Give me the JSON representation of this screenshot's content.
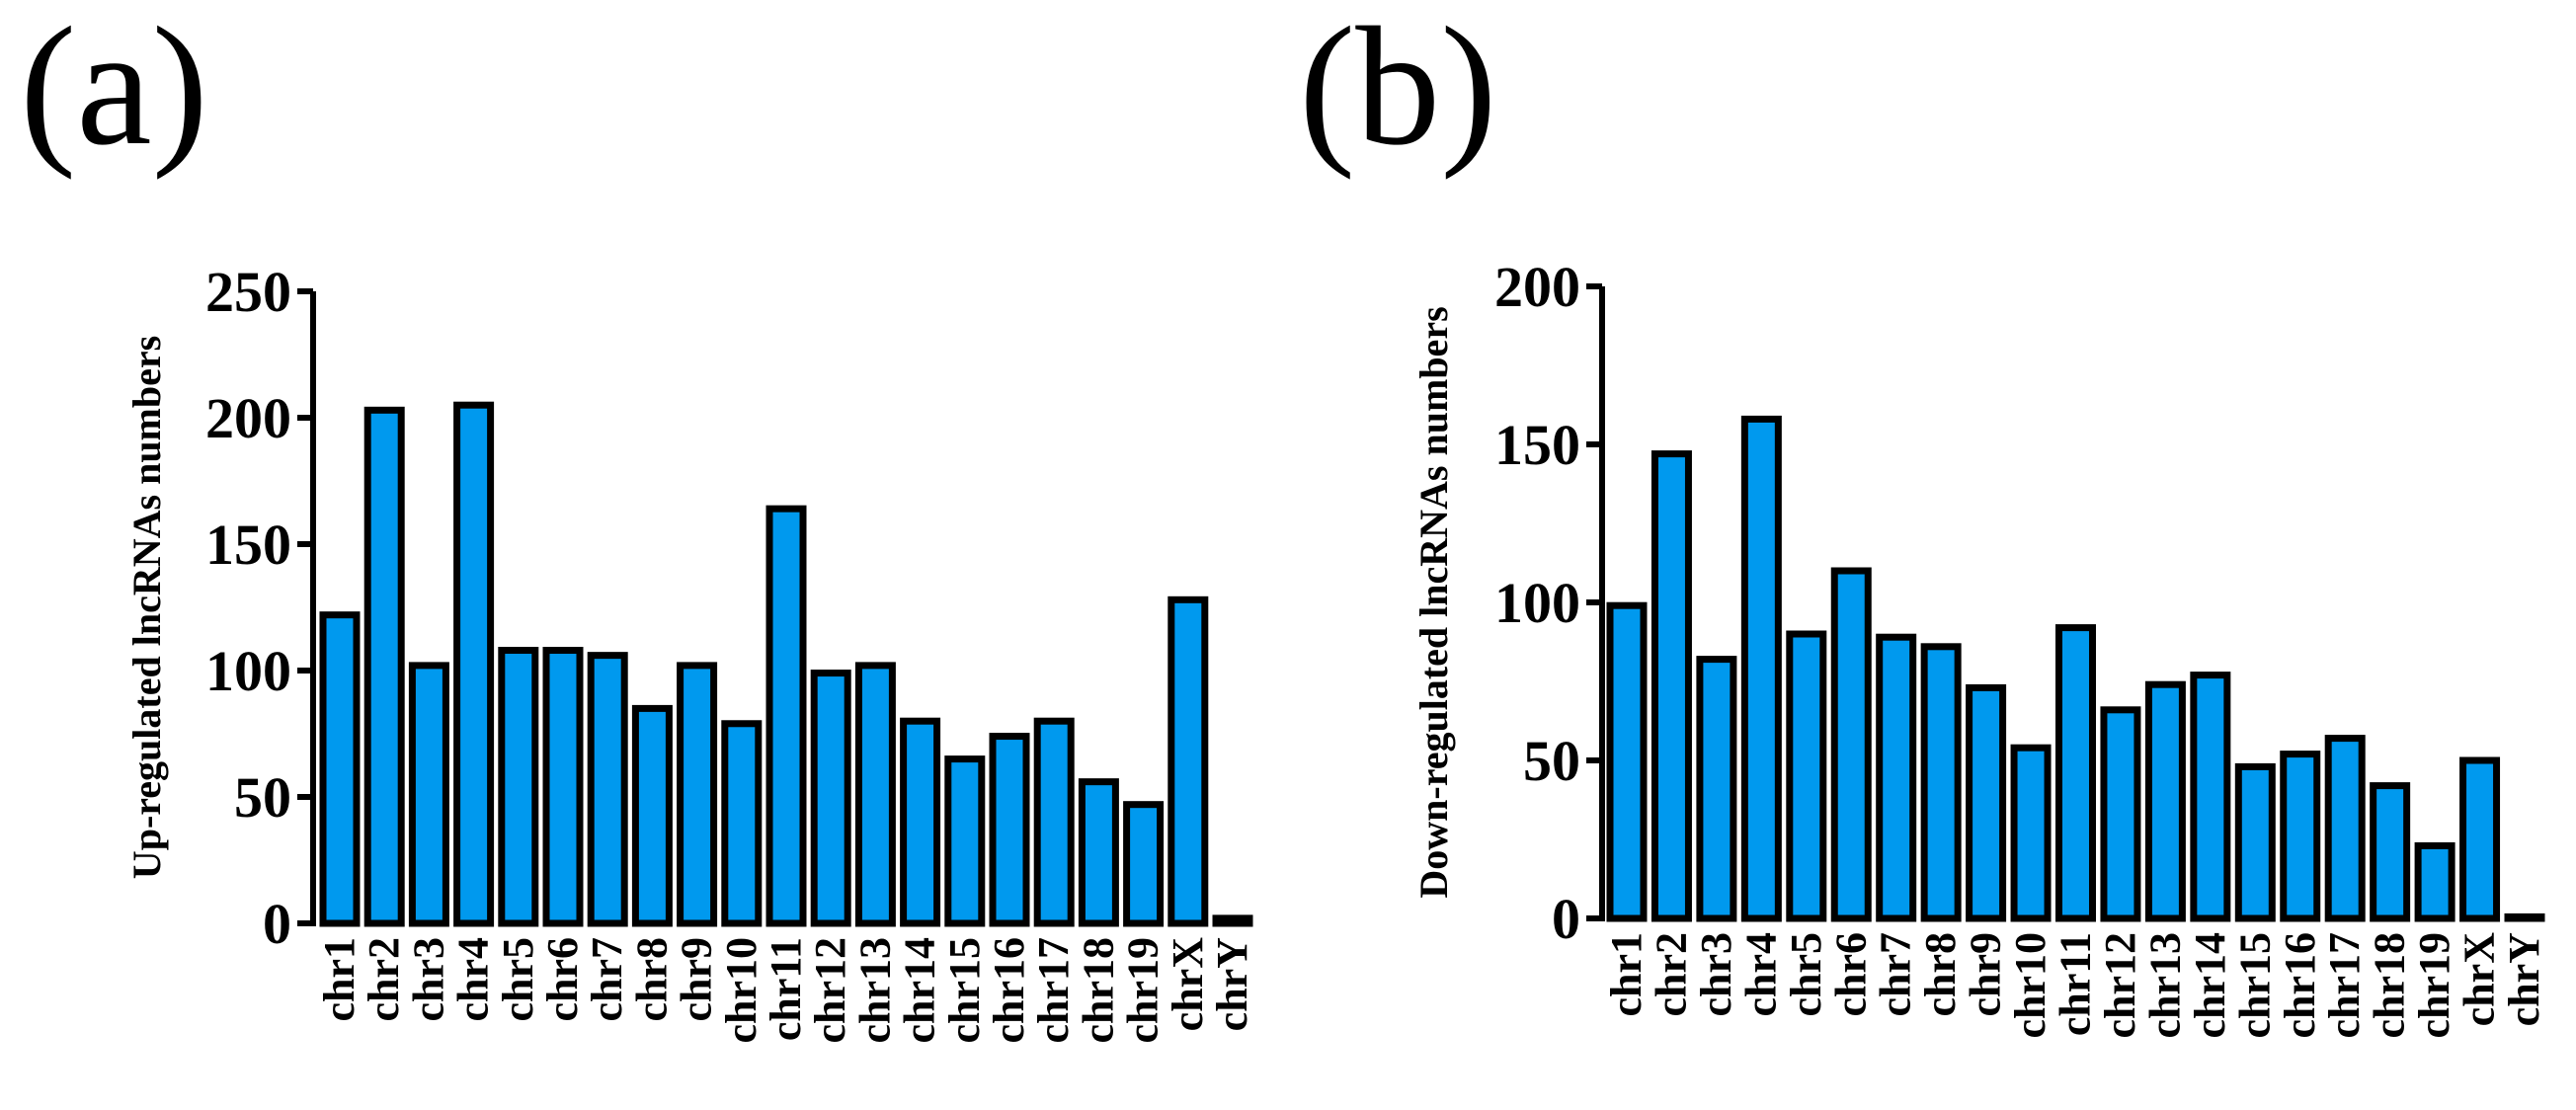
{
  "colors": {
    "bar_fill": "#0099ee",
    "bar_stroke": "#000000",
    "axis": "#000000"
  },
  "chart_data": [
    {
      "type": "bar",
      "panel_label": "(a)",
      "title": "",
      "xlabel": "",
      "ylabel": "Up-regulated lncRNAs numbers",
      "ylim": [
        0,
        250
      ],
      "yticks": [
        0,
        50,
        100,
        150,
        200,
        250
      ],
      "ytick_labels": [
        "0",
        "50",
        "100",
        "150",
        "200",
        "250"
      ],
      "categories": [
        "chr1",
        "chr2",
        "chr3",
        "chr4",
        "chr5",
        "chr6",
        "chr7",
        "chr8",
        "chr9",
        "chr10",
        "chr11",
        "chr12",
        "chr13",
        "chr14",
        "chr15",
        "chr16",
        "chr17",
        "chr18",
        "chr19",
        "chrX",
        "chrY"
      ],
      "values": [
        122,
        203,
        102,
        205,
        108,
        108,
        106,
        85,
        102,
        79,
        164,
        99,
        102,
        80,
        65,
        74,
        80,
        56,
        47,
        128,
        2
      ]
    },
    {
      "type": "bar",
      "panel_label": "(b)",
      "title": "",
      "xlabel": "",
      "ylabel": "Down-regulated lncRNAs numbers",
      "ylim": [
        0,
        200
      ],
      "yticks": [
        0,
        50,
        100,
        150,
        200
      ],
      "ytick_labels": [
        "0",
        "50",
        "100",
        "150",
        "200"
      ],
      "categories": [
        "chr1",
        "chr2",
        "chr3",
        "chr4",
        "chr5",
        "chr6",
        "chr7",
        "chr8",
        "chr9",
        "chr10",
        "chr11",
        "chr12",
        "chr13",
        "chr14",
        "chr15",
        "chr16",
        "chr17",
        "chr18",
        "chr19",
        "chrX",
        "chrY"
      ],
      "values": [
        99,
        147,
        82,
        158,
        90,
        110,
        89,
        86,
        73,
        54,
        92,
        66,
        74,
        77,
        48,
        52,
        57,
        42,
        23,
        50,
        0.5
      ]
    }
  ]
}
